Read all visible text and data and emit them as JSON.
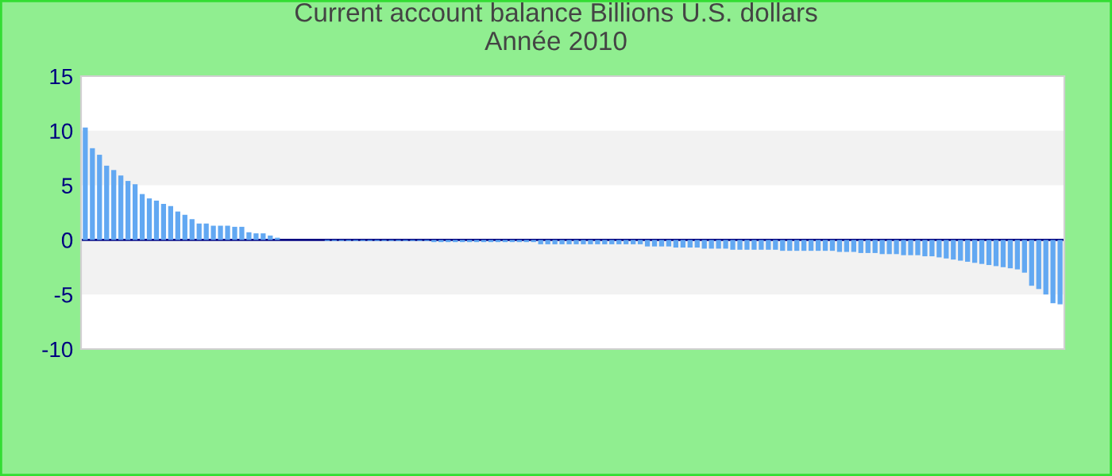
{
  "chart_data": {
    "type": "bar",
    "title": "Current account balance Billions U.S. dollars\nAnnée 2010",
    "categories": [
      null,
      null,
      null,
      null,
      null,
      null,
      null,
      null,
      null,
      null,
      null,
      null,
      null,
      null,
      null,
      null,
      null,
      null,
      null,
      null,
      null,
      null,
      null,
      null,
      null,
      null,
      null,
      null,
      null,
      null,
      null,
      null,
      null,
      null,
      null,
      null,
      null,
      null,
      null,
      null,
      null,
      null,
      null,
      null,
      null,
      null,
      null,
      null,
      null,
      null,
      null,
      null,
      null,
      null,
      null,
      null,
      null,
      null,
      null,
      null,
      null,
      null,
      null,
      null,
      null,
      null,
      null,
      null,
      null,
      null,
      null,
      null,
      null,
      null,
      null,
      null,
      null,
      null,
      null,
      null,
      null,
      null,
      null,
      null,
      null,
      null,
      null,
      null,
      null,
      null,
      null,
      null,
      null,
      null,
      null,
      null,
      null,
      null,
      null,
      null,
      null,
      null,
      null,
      null,
      null,
      null,
      null,
      null,
      null,
      null,
      null,
      null,
      null,
      null,
      null,
      null,
      null,
      null,
      null,
      null,
      null,
      null,
      null,
      null,
      null,
      null,
      null,
      null,
      null,
      null,
      null,
      null,
      null,
      null,
      null,
      null,
      null,
      null
    ],
    "values": [
      10.3,
      8.4,
      7.8,
      6.8,
      6.4,
      5.9,
      5.4,
      5.1,
      4.2,
      3.8,
      3.6,
      3.3,
      3.1,
      2.6,
      2.3,
      1.9,
      1.5,
      1.5,
      1.3,
      1.3,
      1.3,
      1.2,
      1.2,
      0.7,
      0.6,
      0.6,
      0.4,
      0.2,
      0,
      0,
      0,
      0,
      0,
      0,
      -0.1,
      -0.1,
      -0.1,
      -0.1,
      -0.1,
      -0.1,
      -0.1,
      -0.1,
      -0.1,
      -0.1,
      -0.1,
      -0.1,
      -0.1,
      -0.1,
      -0.1,
      -0.2,
      -0.2,
      -0.2,
      -0.2,
      -0.2,
      -0.2,
      -0.2,
      -0.2,
      -0.2,
      -0.2,
      -0.2,
      -0.2,
      -0.2,
      -0.2,
      -0.2,
      -0.4,
      -0.4,
      -0.4,
      -0.4,
      -0.4,
      -0.4,
      -0.4,
      -0.4,
      -0.4,
      -0.4,
      -0.4,
      -0.4,
      -0.4,
      -0.4,
      -0.4,
      -0.6,
      -0.6,
      -0.6,
      -0.6,
      -0.7,
      -0.7,
      -0.7,
      -0.7,
      -0.8,
      -0.8,
      -0.8,
      -0.8,
      -0.9,
      -0.9,
      -0.9,
      -0.9,
      -0.9,
      -0.9,
      -0.9,
      -1.0,
      -1.0,
      -1.0,
      -1.0,
      -1.0,
      -1.0,
      -1.0,
      -1.0,
      -1.1,
      -1.1,
      -1.1,
      -1.2,
      -1.2,
      -1.2,
      -1.3,
      -1.3,
      -1.3,
      -1.4,
      -1.4,
      -1.4,
      -1.5,
      -1.5,
      -1.6,
      -1.7,
      -1.8,
      -1.9,
      -2.0,
      -2.1,
      -2.2,
      -2.3,
      -2.4,
      -2.5,
      -2.6,
      -2.7,
      -3.0,
      -4.2,
      -4.5,
      -5.0,
      -5.8,
      -5.9
    ],
    "color": "#62a8f2",
    "ylim": [
      -10,
      15
    ],
    "yticks": [
      -10,
      -5,
      0,
      5,
      10,
      15
    ],
    "bands": [
      {
        "axis": "y",
        "from": 5,
        "to": 10,
        "color": "#f2f2f2"
      },
      {
        "axis": "y",
        "from": -5,
        "to": 0,
        "color": "#f2f2f2"
      }
    ],
    "ref_lines": [
      {
        "axis": "y",
        "value": 0,
        "color": "#000080"
      }
    ],
    "grid": false,
    "legend": false
  }
}
